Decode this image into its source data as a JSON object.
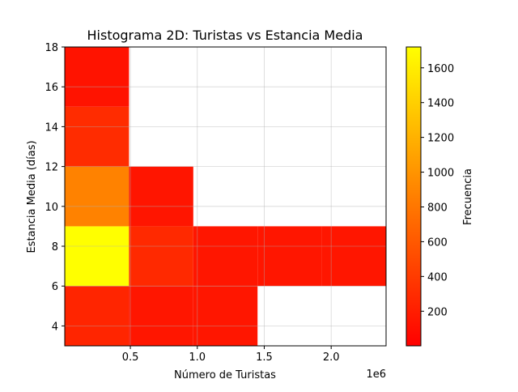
{
  "chart_data": {
    "type": "heatmap",
    "title": "Histograma 2D: Turistas vs Estancia Media",
    "xlabel": "Número de Turistas",
    "ylabel": "Estancia Media (días)",
    "x_offset_label": "1e6",
    "colorbar_label": "Frecuencia",
    "colormap": "autumn_r",
    "color_low": "#ff0000",
    "color_high": "#ffff00",
    "x_bin_edges": [
      10000,
      490000,
      970000,
      1450000,
      1930000,
      2410000
    ],
    "y_bin_edges": [
      3,
      6,
      9,
      12,
      15,
      18
    ],
    "xlim": [
      10000,
      2410000
    ],
    "ylim": [
      3,
      18
    ],
    "clim": [
      1,
      1720
    ],
    "x_ticks": [
      {
        "value": 500000,
        "label": "0.5"
      },
      {
        "value": 1000000,
        "label": "1.0"
      },
      {
        "value": 1500000,
        "label": "1.5"
      },
      {
        "value": 2000000,
        "label": "2.0"
      }
    ],
    "y_ticks": [
      {
        "value": 4,
        "label": "4"
      },
      {
        "value": 6,
        "label": "6"
      },
      {
        "value": 8,
        "label": "8"
      },
      {
        "value": 10,
        "label": "10"
      },
      {
        "value": 12,
        "label": "12"
      },
      {
        "value": 14,
        "label": "14"
      },
      {
        "value": 16,
        "label": "16"
      },
      {
        "value": 18,
        "label": "18"
      }
    ],
    "colorbar_ticks": [
      {
        "value": 200,
        "label": "200"
      },
      {
        "value": 400,
        "label": "400"
      },
      {
        "value": 600,
        "label": "600"
      },
      {
        "value": 800,
        "label": "800"
      },
      {
        "value": 1000,
        "label": "1000"
      },
      {
        "value": 1200,
        "label": "1200"
      },
      {
        "value": 1400,
        "label": "1400"
      },
      {
        "value": 1600,
        "label": "1600"
      }
    ],
    "grid": true,
    "counts": [
      [
        250,
        150,
        150,
        0,
        0
      ],
      [
        1720,
        280,
        150,
        150,
        150
      ],
      [
        880,
        140,
        0,
        0,
        0
      ],
      [
        300,
        0,
        0,
        0,
        0
      ],
      [
        130,
        0,
        0,
        0,
        0
      ]
    ]
  }
}
